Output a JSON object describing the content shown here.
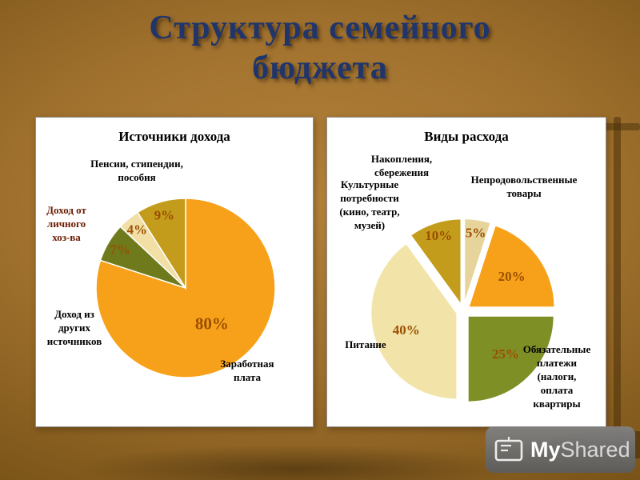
{
  "slide": {
    "title_lines": [
      "Структура семейного",
      "бюджета"
    ],
    "title_color": "#20356B",
    "background_color": "#96682A"
  },
  "chart_data": [
    {
      "type": "pie",
      "title": "Источники дохода",
      "labels": [
        "Заработная плата",
        "Доход из других источников",
        "Доход от личного хоз-ва",
        "Пенсии, стипендии, пособия"
      ],
      "values": [
        80,
        7,
        4,
        9
      ],
      "colors": [
        "#F7A11A",
        "#6F7A1D",
        "#F1DFA6",
        "#C49C1C"
      ],
      "percent_color": "#9A4F00",
      "explode": 0,
      "legend": "none",
      "label_display": [
        "Заработная\nплата",
        "Доход из\nдругих\nисточников",
        "Доход от\nличного\nхоз-ва",
        "Пенсии, стипендии,\nпособия"
      ]
    },
    {
      "type": "pie",
      "title": "Виды расхода",
      "labels": [
        "Накопления, сбережения",
        "Непродовольственные товары",
        "Обязательные платежи (налоги, оплата квартиры",
        "Питание",
        "Культурные потребности (кино, театр, музей)"
      ],
      "values": [
        5,
        20,
        25,
        40,
        10
      ],
      "colors": [
        "#E6D49B",
        "#F7A11A",
        "#7E8F26",
        "#F2E3A8",
        "#C49C1C"
      ],
      "percent_color": "#9A4F00",
      "explode": 8,
      "legend": "none",
      "label_display": [
        "Накопления,\nсбережения",
        "Непродовольственные\nтовары",
        "Обязательные\nплатежи\n(налоги,\nоплата\nквартиры",
        "Питание",
        "Культурные\nпотребности\n(кино, театр,\nмузей)"
      ]
    }
  ],
  "watermark": {
    "text_my": "My",
    "text_shared": "Shared"
  }
}
